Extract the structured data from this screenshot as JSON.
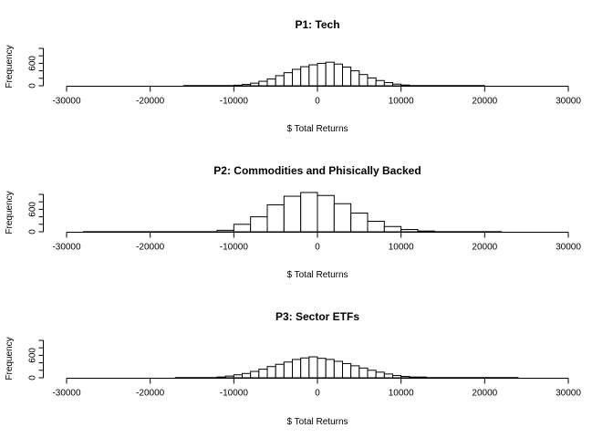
{
  "chart_data": [
    {
      "type": "bar",
      "title": "P1: Tech",
      "xlabel": "$ Total Returns",
      "ylabel": "Frequency",
      "xlim": [
        -30000,
        30000
      ],
      "ylim": [
        0,
        1000
      ],
      "xticks": [
        -30000,
        -20000,
        -10000,
        0,
        10000,
        20000,
        30000
      ],
      "yticks": [
        0,
        600
      ],
      "bins": [
        [
          -16000,
          -10000,
          6
        ],
        [
          -10000,
          -9000,
          15
        ],
        [
          -9000,
          -8000,
          35
        ],
        [
          -8000,
          -7000,
          70
        ],
        [
          -7000,
          -6000,
          120
        ],
        [
          -6000,
          -5000,
          180
        ],
        [
          -5000,
          -4000,
          270
        ],
        [
          -4000,
          -3000,
          350
        ],
        [
          -3000,
          -2000,
          440
        ],
        [
          -2000,
          -1000,
          510
        ],
        [
          -1000,
          0,
          560
        ],
        [
          0,
          1000,
          600
        ],
        [
          1000,
          2000,
          630
        ],
        [
          2000,
          3000,
          580
        ],
        [
          3000,
          4000,
          500
        ],
        [
          4000,
          5000,
          400
        ],
        [
          5000,
          6000,
          300
        ],
        [
          6000,
          7000,
          210
        ],
        [
          7000,
          8000,
          140
        ],
        [
          8000,
          9000,
          85
        ],
        [
          9000,
          10000,
          45
        ],
        [
          10000,
          11000,
          20
        ],
        [
          11000,
          20000,
          6
        ]
      ]
    },
    {
      "type": "bar",
      "title": "P2: Commodities and Phisically Backed",
      "xlabel": "$ Total Returns",
      "ylabel": "Frequency",
      "xlim": [
        -30000,
        30000
      ],
      "ylim": [
        0,
        1000
      ],
      "xticks": [
        -30000,
        -20000,
        -10000,
        0,
        10000,
        20000,
        30000
      ],
      "yticks": [
        0,
        600
      ],
      "bins": [
        [
          -28000,
          -12000,
          3
        ],
        [
          -12000,
          -10000,
          40
        ],
        [
          -10000,
          -8000,
          200
        ],
        [
          -8000,
          -6000,
          400
        ],
        [
          -6000,
          -4000,
          720
        ],
        [
          -4000,
          -2000,
          950
        ],
        [
          -2000,
          0,
          1050
        ],
        [
          0,
          2000,
          970
        ],
        [
          2000,
          4000,
          750
        ],
        [
          4000,
          6000,
          500
        ],
        [
          6000,
          8000,
          280
        ],
        [
          8000,
          10000,
          140
        ],
        [
          10000,
          12000,
          60
        ],
        [
          12000,
          14000,
          20
        ],
        [
          14000,
          22000,
          4
        ]
      ]
    },
    {
      "type": "bar",
      "title": "P3: Sector ETFs",
      "xlabel": "$ Total Returns",
      "ylabel": "Frequency",
      "xlim": [
        -30000,
        30000
      ],
      "ylim": [
        0,
        1000
      ],
      "xticks": [
        -30000,
        -20000,
        -10000,
        0,
        10000,
        20000,
        30000
      ],
      "yticks": [
        0,
        600
      ],
      "bins": [
        [
          -17000,
          -12000,
          6
        ],
        [
          -12000,
          -11000,
          20
        ],
        [
          -11000,
          -10000,
          45
        ],
        [
          -10000,
          -9000,
          80
        ],
        [
          -9000,
          -8000,
          115
        ],
        [
          -8000,
          -7000,
          170
        ],
        [
          -7000,
          -6000,
          230
        ],
        [
          -6000,
          -5000,
          300
        ],
        [
          -5000,
          -4000,
          360
        ],
        [
          -4000,
          -3000,
          420
        ],
        [
          -3000,
          -2000,
          490
        ],
        [
          -2000,
          -1000,
          530
        ],
        [
          -1000,
          0,
          560
        ],
        [
          0,
          1000,
          520
        ],
        [
          1000,
          2000,
          490
        ],
        [
          2000,
          3000,
          440
        ],
        [
          3000,
          4000,
          380
        ],
        [
          4000,
          5000,
          320
        ],
        [
          5000,
          6000,
          260
        ],
        [
          6000,
          7000,
          200
        ],
        [
          7000,
          8000,
          150
        ],
        [
          8000,
          9000,
          100
        ],
        [
          9000,
          10000,
          60
        ],
        [
          10000,
          11000,
          35
        ],
        [
          11000,
          13000,
          20
        ],
        [
          13000,
          24000,
          6
        ]
      ]
    }
  ]
}
